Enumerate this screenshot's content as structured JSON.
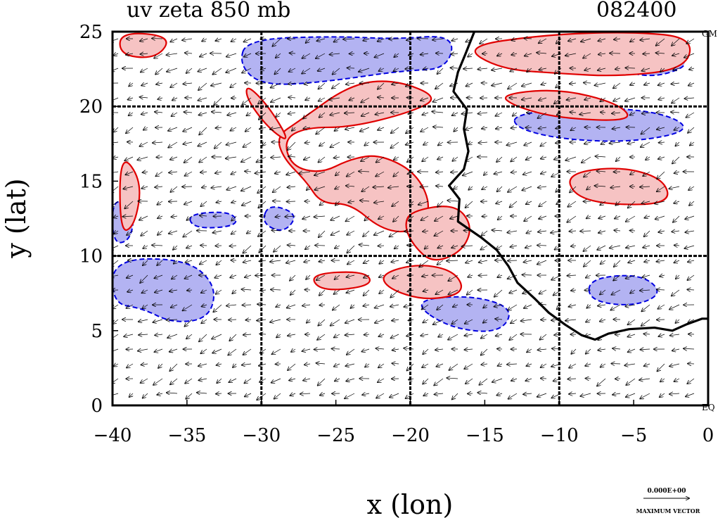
{
  "title_left": "uv zeta 850 mb",
  "title_right": "082400",
  "corner_top_right": "GM",
  "corner_bottom_right": "EQ",
  "vector_legend": {
    "value": "0.000E+00",
    "label": "MAXIMUM VECTOR"
  },
  "chart_data": {
    "type": "heatmap",
    "xlabel": "x (lon)",
    "ylabel": "y (lat)",
    "xlim": [
      -40,
      0
    ],
    "ylim": [
      0,
      25
    ],
    "x_ticks": [
      -40,
      -35,
      -30,
      -25,
      -20,
      -15,
      -10,
      -5,
      0
    ],
    "x_tick_labels": [
      "−40",
      "−35",
      "−30",
      "−25",
      "−20",
      "−15",
      "−10",
      "−5",
      "0"
    ],
    "y_ticks": [
      0,
      5,
      10,
      15,
      20,
      25
    ],
    "y_tick_labels": [
      "0",
      "5",
      "10",
      "15",
      "20",
      "25"
    ],
    "grid_x": [
      -30,
      -20,
      -10
    ],
    "grid_y": [
      10,
      20
    ],
    "colors": {
      "positive_fill": "#f6c3c3",
      "positive_line": "#e00000",
      "negative_fill": "#b3b3f2",
      "negative_line": "#0000e0",
      "coastline": "#000000"
    },
    "positive_regions": [
      [
        [
          -24,
          21.5
        ],
        [
          -21,
          21.8
        ],
        [
          -18,
          20.6
        ],
        [
          -20,
          19.6
        ],
        [
          -24,
          18.6
        ],
        [
          -27,
          18.6
        ],
        [
          -28.5,
          17.8
        ],
        [
          -28,
          16
        ],
        [
          -26,
          15.5
        ],
        [
          -24,
          16.5
        ],
        [
          -22,
          16.8
        ],
        [
          -19.5,
          15.5
        ],
        [
          -18.5,
          13
        ],
        [
          -20,
          11.5
        ],
        [
          -22,
          11.8
        ],
        [
          -24,
          13.5
        ],
        [
          -26,
          13.5
        ],
        [
          -27,
          15
        ],
        [
          -28.5,
          16.5
        ],
        [
          -29,
          18
        ],
        [
          -27.5,
          19
        ]
      ],
      [
        [
          -20,
          13
        ],
        [
          -17,
          13.5
        ],
        [
          -15.8,
          12
        ],
        [
          -16.5,
          10.3
        ],
        [
          -18.5,
          9.5
        ],
        [
          -19.8,
          10.7
        ],
        [
          -20.4,
          12
        ]
      ],
      [
        [
          -19.5,
          9.5
        ],
        [
          -17,
          9
        ],
        [
          -16.3,
          7.5
        ],
        [
          -19,
          7
        ],
        [
          -21.5,
          7.8
        ],
        [
          -22,
          8.8
        ]
      ],
      [
        [
          -16.5,
          24
        ],
        [
          -11,
          24.8
        ],
        [
          -5,
          25
        ],
        [
          -1,
          24.6
        ],
        [
          -1.5,
          22.5
        ],
        [
          -6,
          22
        ],
        [
          -10,
          22.2
        ],
        [
          -14,
          22.5
        ]
      ],
      [
        [
          -14,
          20.8
        ],
        [
          -10,
          21.2
        ],
        [
          -6,
          20.2
        ],
        [
          -5,
          19
        ],
        [
          -10,
          19.2
        ],
        [
          -13,
          20
        ]
      ],
      [
        [
          -39.5,
          25
        ],
        [
          -36,
          24.7
        ],
        [
          -37,
          23.2
        ],
        [
          -39.5,
          23.4
        ]
      ],
      [
        [
          -39.5,
          17
        ],
        [
          -38,
          15
        ],
        [
          -38.5,
          12
        ],
        [
          -39.5,
          11.5
        ]
      ],
      [
        [
          -26.8,
          8.8
        ],
        [
          -23,
          9
        ],
        [
          -22.5,
          8
        ],
        [
          -26,
          7.6
        ]
      ],
      [
        [
          -31,
          21.5
        ],
        [
          -29.5,
          20
        ],
        [
          -28,
          17.5
        ],
        [
          -29.5,
          18.5
        ],
        [
          -31,
          20.5
        ]
      ],
      [
        [
          -9.5,
          15.5
        ],
        [
          -6,
          16
        ],
        [
          -3,
          15.2
        ],
        [
          -2.5,
          13.5
        ],
        [
          -6.5,
          13.4
        ],
        [
          -9,
          14
        ]
      ]
    ],
    "negative_regions": [
      [
        [
          -31,
          24.5
        ],
        [
          -25,
          24.7
        ],
        [
          -21,
          24.5
        ],
        [
          -17,
          24.8
        ],
        [
          -17.5,
          22.5
        ],
        [
          -20.5,
          22.4
        ],
        [
          -26,
          21.6
        ],
        [
          -30,
          21.4
        ],
        [
          -31.5,
          22.8
        ]
      ],
      [
        [
          -40,
          9.8
        ],
        [
          -35,
          9.8
        ],
        [
          -33,
          8
        ],
        [
          -33.5,
          5.8
        ],
        [
          -36,
          5.5
        ],
        [
          -38,
          6.5
        ],
        [
          -40,
          6.8
        ]
      ],
      [
        [
          -40,
          14
        ],
        [
          -38.5,
          13
        ],
        [
          -38.8,
          11
        ],
        [
          -40,
          10.8
        ]
      ],
      [
        [
          -13,
          19.5
        ],
        [
          -8,
          20
        ],
        [
          -3,
          19.6
        ],
        [
          -1,
          18.4
        ],
        [
          -5,
          17.6
        ],
        [
          -10,
          17.8
        ],
        [
          -13,
          18.6
        ]
      ],
      [
        [
          -7.5,
          23
        ],
        [
          -3,
          23.5
        ],
        [
          -1,
          22.8
        ],
        [
          -4,
          21.8
        ]
      ],
      [
        [
          -29.5,
          13.5
        ],
        [
          -27.5,
          12.8
        ],
        [
          -28.5,
          11.5
        ],
        [
          -30,
          12.2
        ]
      ],
      [
        [
          -20,
          7
        ],
        [
          -16,
          7.4
        ],
        [
          -13,
          6.5
        ],
        [
          -14,
          4.8
        ],
        [
          -17.5,
          5.2
        ]
      ],
      [
        [
          -8,
          8.5
        ],
        [
          -4.5,
          8.8
        ],
        [
          -3,
          7.5
        ],
        [
          -5,
          6.6
        ],
        [
          -8,
          7
        ]
      ],
      [
        [
          -35,
          12.8
        ],
        [
          -32,
          13
        ],
        [
          -31.5,
          12
        ],
        [
          -34.5,
          11.8
        ]
      ]
    ],
    "coastline": [
      [
        -15.7,
        25
      ],
      [
        -16.3,
        23.5
      ],
      [
        -16.8,
        22.3
      ],
      [
        -17.1,
        21
      ],
      [
        -16.2,
        19.8
      ],
      [
        -16.4,
        18.5
      ],
      [
        -16.1,
        17
      ],
      [
        -16.4,
        15.8
      ],
      [
        -17.4,
        14.7
      ],
      [
        -16.7,
        13.8
      ],
      [
        -16.8,
        12.3
      ],
      [
        -15.2,
        11.2
      ],
      [
        -14.2,
        10.4
      ],
      [
        -13.4,
        9.3
      ],
      [
        -12.8,
        8.2
      ],
      [
        -11.6,
        7.1
      ],
      [
        -10.7,
        6.2
      ],
      [
        -9.6,
        5.4
      ],
      [
        -8.5,
        4.7
      ],
      [
        -7.6,
        4.4
      ],
      [
        -6.7,
        4.8
      ],
      [
        -5.3,
        5.1
      ],
      [
        -3.6,
        5.2
      ],
      [
        -2.4,
        5.0
      ],
      [
        -1.5,
        5.4
      ],
      [
        -0.4,
        5.8
      ],
      [
        0,
        5.8
      ]
    ]
  }
}
